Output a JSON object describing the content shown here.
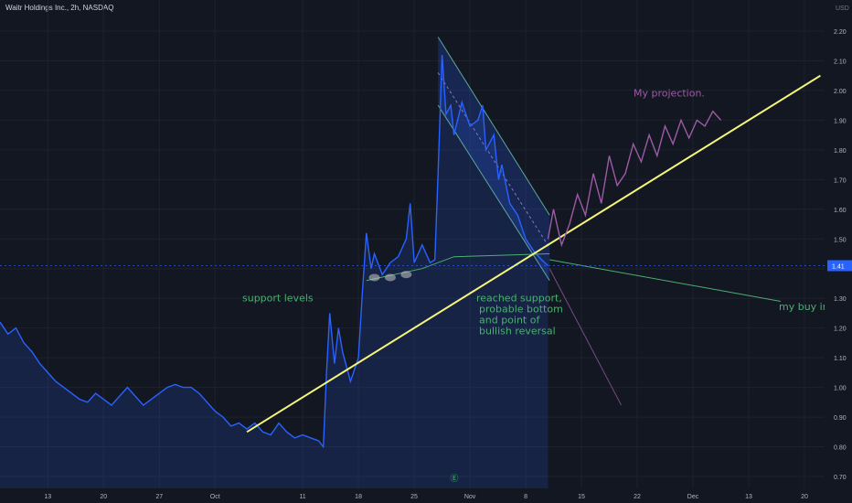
{
  "header": {
    "symbol_line": "Waitr Holdings Inc., 2h, NASDAQ"
  },
  "chart_data": {
    "type": "line",
    "title": "Waitr Holdings Inc., 2h, NASDAQ",
    "currency": "USD",
    "ylim": [
      0.68,
      2.32
    ],
    "y_ticks": [
      "0.70",
      "0.80",
      "0.90",
      "1.00",
      "1.10",
      "1.20",
      "1.30",
      "1.40",
      "1.50",
      "1.60",
      "1.70",
      "1.80",
      "1.90",
      "2.00",
      "2.10",
      "2.20"
    ],
    "y_tick_values": [
      0.7,
      0.8,
      0.9,
      1.0,
      1.1,
      1.2,
      1.3,
      1.4,
      1.5,
      1.6,
      1.7,
      1.8,
      1.9,
      2.0,
      2.1,
      2.2
    ],
    "x_ticks": [
      "13",
      "20",
      "27",
      "Oct",
      "11",
      "18",
      "25",
      "Nov",
      "8",
      "15",
      "22",
      "Dec",
      "13",
      "20"
    ],
    "x_tick_idx": [
      6,
      13,
      20,
      27,
      38,
      45,
      52,
      59,
      66,
      73,
      80,
      87,
      94,
      101
    ],
    "last_price_label": "1.41",
    "last_price": 1.41,
    "colors": {
      "price": "#2962ff",
      "trend": "#f5f57a",
      "projection": "#9c5ba6",
      "support": "#4caf72",
      "channel": "#5fa89a",
      "bg": "#131722"
    },
    "price_series": [
      [
        0,
        1.22
      ],
      [
        1,
        1.18
      ],
      [
        2,
        1.2
      ],
      [
        3,
        1.15
      ],
      [
        4,
        1.12
      ],
      [
        5,
        1.08
      ],
      [
        6,
        1.05
      ],
      [
        7,
        1.02
      ],
      [
        8,
        1.0
      ],
      [
        9,
        0.98
      ],
      [
        10,
        0.96
      ],
      [
        11,
        0.95
      ],
      [
        12,
        0.98
      ],
      [
        13,
        0.96
      ],
      [
        14,
        0.94
      ],
      [
        15,
        0.97
      ],
      [
        16,
        1.0
      ],
      [
        17,
        0.97
      ],
      [
        18,
        0.94
      ],
      [
        19,
        0.96
      ],
      [
        20,
        0.98
      ],
      [
        21,
        1.0
      ],
      [
        22,
        1.01
      ],
      [
        23,
        1.0
      ],
      [
        24,
        1.0
      ],
      [
        25,
        0.98
      ],
      [
        26,
        0.95
      ],
      [
        27,
        0.92
      ],
      [
        28,
        0.9
      ],
      [
        29,
        0.87
      ],
      [
        30,
        0.88
      ],
      [
        31,
        0.86
      ],
      [
        32,
        0.88
      ],
      [
        33,
        0.85
      ],
      [
        34,
        0.84
      ],
      [
        35,
        0.88
      ],
      [
        36,
        0.85
      ],
      [
        37,
        0.83
      ],
      [
        38,
        0.84
      ],
      [
        39,
        0.83
      ],
      [
        40,
        0.82
      ],
      [
        40.6,
        0.8
      ],
      [
        41,
        1.05
      ],
      [
        41.4,
        1.25
      ],
      [
        42,
        1.08
      ],
      [
        42.5,
        1.2
      ],
      [
        43,
        1.12
      ],
      [
        44,
        1.02
      ],
      [
        45,
        1.1
      ],
      [
        45.5,
        1.32
      ],
      [
        46,
        1.52
      ],
      [
        46.6,
        1.4
      ],
      [
        47,
        1.45
      ],
      [
        48,
        1.38
      ],
      [
        49,
        1.42
      ],
      [
        50,
        1.44
      ],
      [
        51,
        1.5
      ],
      [
        51.5,
        1.62
      ],
      [
        52,
        1.42
      ],
      [
        53,
        1.48
      ],
      [
        54,
        1.42
      ],
      [
        54.6,
        1.43
      ],
      [
        55,
        1.72
      ],
      [
        55.5,
        2.12
      ],
      [
        56,
        1.92
      ],
      [
        56.6,
        1.95
      ],
      [
        57,
        1.85
      ],
      [
        58,
        1.96
      ],
      [
        59,
        1.88
      ],
      [
        60,
        1.9
      ],
      [
        60.6,
        1.95
      ],
      [
        61,
        1.8
      ],
      [
        62,
        1.85
      ],
      [
        62.6,
        1.7
      ],
      [
        63,
        1.75
      ],
      [
        64,
        1.62
      ],
      [
        65,
        1.58
      ],
      [
        66,
        1.5
      ],
      [
        67,
        1.46
      ],
      [
        68,
        1.43
      ],
      [
        68.8,
        1.41
      ]
    ],
    "projection_series": [
      [
        68.8,
        1.5
      ],
      [
        69.5,
        1.6
      ],
      [
        70.5,
        1.48
      ],
      [
        71.5,
        1.55
      ],
      [
        72.5,
        1.65
      ],
      [
        73.5,
        1.58
      ],
      [
        74.5,
        1.72
      ],
      [
        75.5,
        1.62
      ],
      [
        76.5,
        1.78
      ],
      [
        77.5,
        1.68
      ],
      [
        78.5,
        1.72
      ],
      [
        79.5,
        1.82
      ],
      [
        80.5,
        1.76
      ],
      [
        81.5,
        1.85
      ],
      [
        82.5,
        1.78
      ],
      [
        83.5,
        1.88
      ],
      [
        84.5,
        1.82
      ],
      [
        85.5,
        1.9
      ],
      [
        86.5,
        1.84
      ],
      [
        87.5,
        1.9
      ],
      [
        88.5,
        1.88
      ],
      [
        89.5,
        1.93
      ],
      [
        90.5,
        1.9
      ]
    ],
    "trend_line": {
      "from": [
        31,
        0.85
      ],
      "to": [
        103,
        2.05
      ]
    },
    "channel_upper": {
      "from": [
        55,
        2.18
      ],
      "to": [
        69,
        1.58
      ]
    },
    "channel_lower": {
      "from": [
        55,
        1.95
      ],
      "to": [
        69,
        1.36
      ]
    },
    "channel_mid": {
      "from": [
        55,
        2.06
      ],
      "to": [
        69,
        1.47
      ]
    },
    "support_line": [
      [
        46,
        1.36
      ],
      [
        53,
        1.4
      ],
      [
        57,
        1.44
      ],
      [
        69,
        1.45
      ]
    ],
    "buy_line": {
      "from": [
        69,
        1.43
      ],
      "to": [
        98,
        1.29
      ]
    },
    "dashed_projection": {
      "from": [
        69,
        1.4
      ],
      "to": [
        78,
        0.94
      ]
    },
    "annotations": {
      "support": "support levels",
      "reached": [
        "reached support,",
        "probable bottom",
        "and point of",
        "bullish reversal"
      ],
      "projection": "My projection.",
      "buy": "my buy in, $"
    }
  }
}
